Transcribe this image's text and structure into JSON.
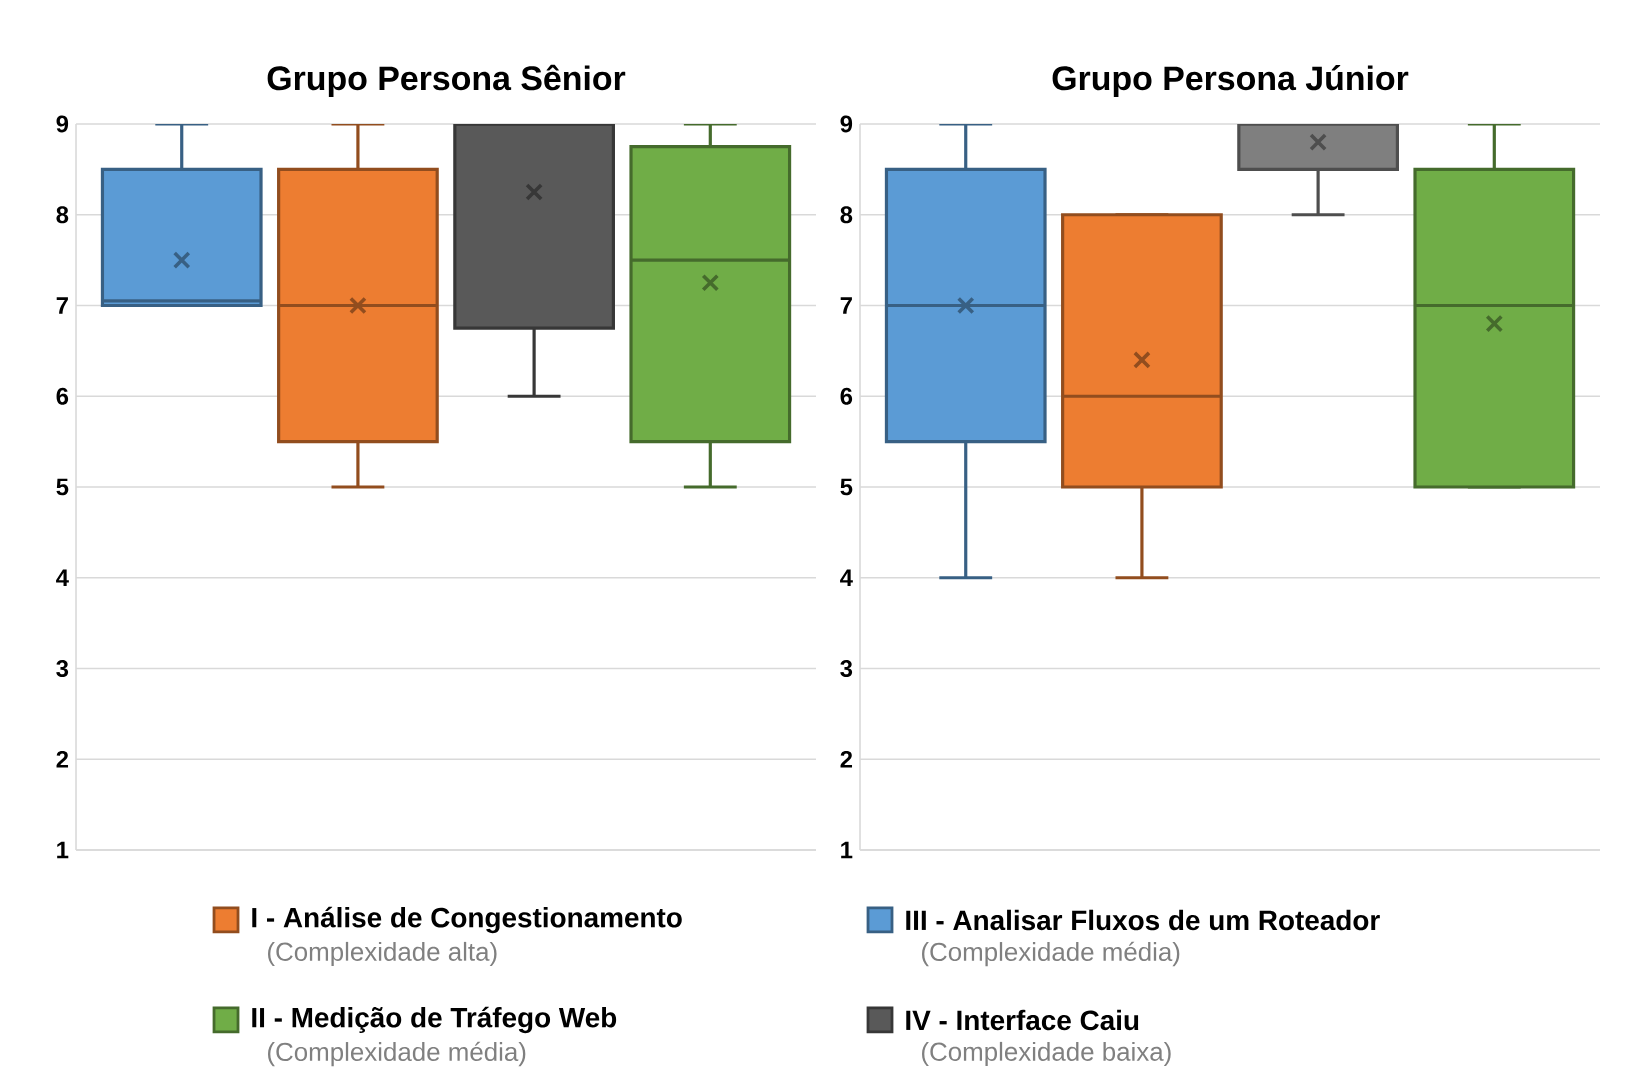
{
  "chart_data": [
    {
      "type": "box",
      "title": "Grupo Persona Sênior",
      "categories": [
        null
      ],
      "ylim": [
        1,
        9
      ],
      "yticks": [
        1,
        2,
        3,
        4,
        5,
        6,
        7,
        8,
        9
      ],
      "grid": "y",
      "legend": "bottom",
      "annotations": [
        "(Complexidade média)",
        "(Complexidade alta)",
        "(Complexidade baixa)",
        "(Complexidade média)"
      ],
      "series": [
        {
          "name": "**III** - Analisar Fluxos de um Roteador",
          "color": "#5b9bd5",
          "boxes": [
            {
              "low": 7,
              "q1": 7,
              "median": 7.05,
              "q3": 8.5,
              "high": 9,
              "mean": 7.5
            }
          ]
        },
        {
          "name": "**I** - Análise de Congestionamento",
          "color": "#ed7d31",
          "boxes": [
            {
              "low": 5,
              "q1": 5.5,
              "median": 7,
              "q3": 8.5,
              "high": 9,
              "mean": 7
            }
          ]
        },
        {
          "name": "**IV** - Interface Caiu",
          "color": "#595959",
          "boxes": [
            {
              "low": 6,
              "q1": 6.75,
              "median": 9,
              "q3": 9,
              "high": 9,
              "mean": 8.25
            }
          ]
        },
        {
          "name": "**II** - Medição de Tráfego Web",
          "color": "#70ad47",
          "boxes": [
            {
              "low": 5,
              "q1": 5.5,
              "median": 7.5,
              "q3": 8.75,
              "high": 9,
              "mean": 7.25
            }
          ]
        }
      ]
    },
    {
      "type": "box",
      "title": "Grupo Persona Júnior",
      "categories": [
        null
      ],
      "ylim": [
        1,
        9
      ],
      "yticks": [
        1,
        2,
        3,
        4,
        5,
        6,
        7,
        8,
        9
      ],
      "grid": "y",
      "series": [
        {
          "color": "#5b9bd5",
          "boxes": [
            {
              "low": 4,
              "q1": 5.5,
              "median": 7,
              "q3": 8.5,
              "high": 9,
              "mean": 7
            }
          ]
        },
        {
          "color": "#ed7d31",
          "boxes": [
            {
              "low": 4,
              "q1": 5,
              "median": 6,
              "q3": 8,
              "high": 8,
              "mean": 6.4
            }
          ]
        },
        {
          "color": "#7f7f7f",
          "boxes": [
            {
              "low": 8,
              "q1": 8.5,
              "median": 9,
              "q3": 9,
              "high": 9,
              "mean": 8.8
            }
          ]
        },
        {
          "color": "#70ad47",
          "boxes": [
            {
              "low": 5,
              "q1": 5,
              "median": 7,
              "q3": 8.5,
              "high": 9,
              "mean": 6.8
            }
          ]
        }
      ]
    }
  ]
}
